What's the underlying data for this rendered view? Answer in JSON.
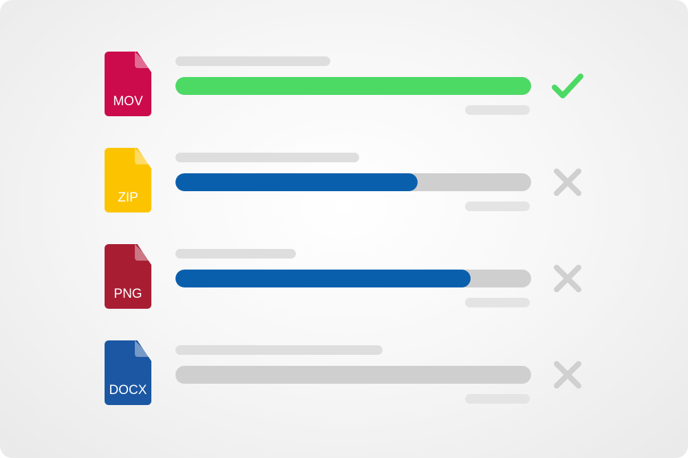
{
  "colors": {
    "success": "#4cd964",
    "progress": "#0a5fad",
    "track": "#cfcfcf",
    "cancel": "#d0d0d0"
  },
  "files": [
    {
      "label": "MOV",
      "color": "#cc0b4c",
      "progress_percent": 100,
      "status": "check-icon"
    },
    {
      "label": "ZIP",
      "color": "#fcc400",
      "progress_percent": 68,
      "status": "x-icon"
    },
    {
      "label": "PNG",
      "color": "#a91d33",
      "progress_percent": 83,
      "status": "x-icon"
    },
    {
      "label": "DOCX",
      "color": "#1b57a3",
      "progress_percent": 0,
      "status": "x-icon"
    }
  ]
}
